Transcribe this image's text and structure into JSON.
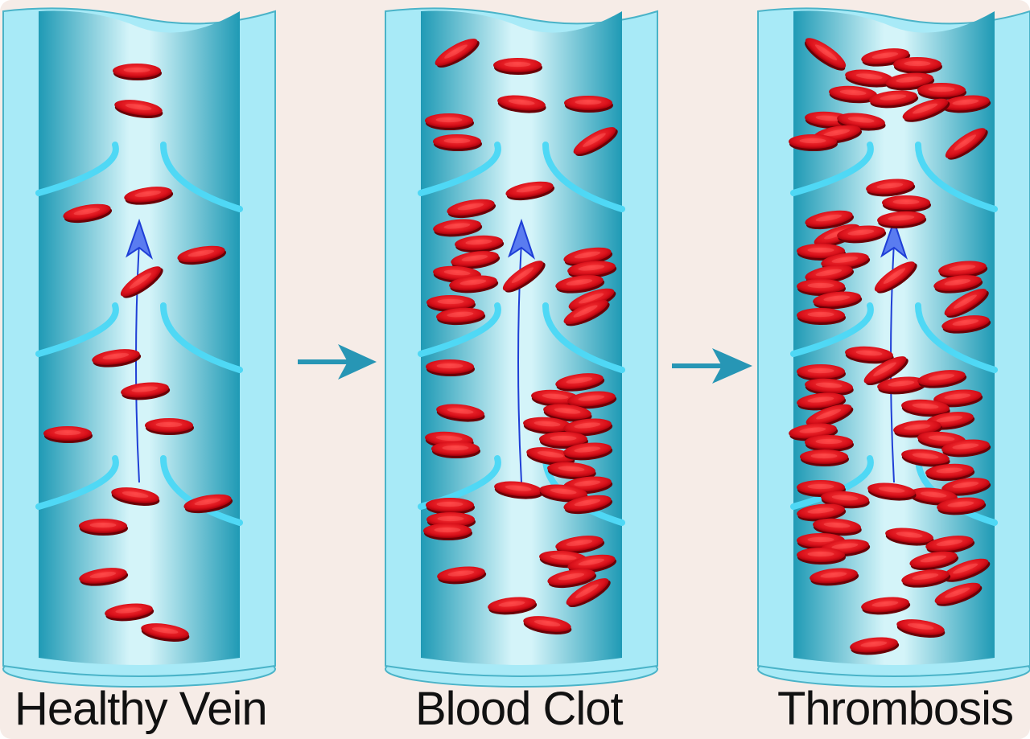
{
  "panels": [
    {
      "label": "Healthy Vein"
    },
    {
      "label": "Blood Clot"
    },
    {
      "label": "Thrombosis"
    }
  ],
  "colors": {
    "background": "#f6ece7",
    "vessel_wall": "#a8eaf7",
    "vessel_wall_outline": "#4ab3c8",
    "lumen_dark": "#1f9ab5",
    "lumen_light": "#d4f4f9",
    "valve": "#4fd8f5",
    "blood_cell": "#e0101e",
    "blood_cell_edge": "#7a0006",
    "flow_arrow": "#1f3fd6",
    "transition_arrow": "#2796b5"
  },
  "icons": {
    "transition": "right-arrow-icon",
    "flow": "up-arrow-icon"
  }
}
